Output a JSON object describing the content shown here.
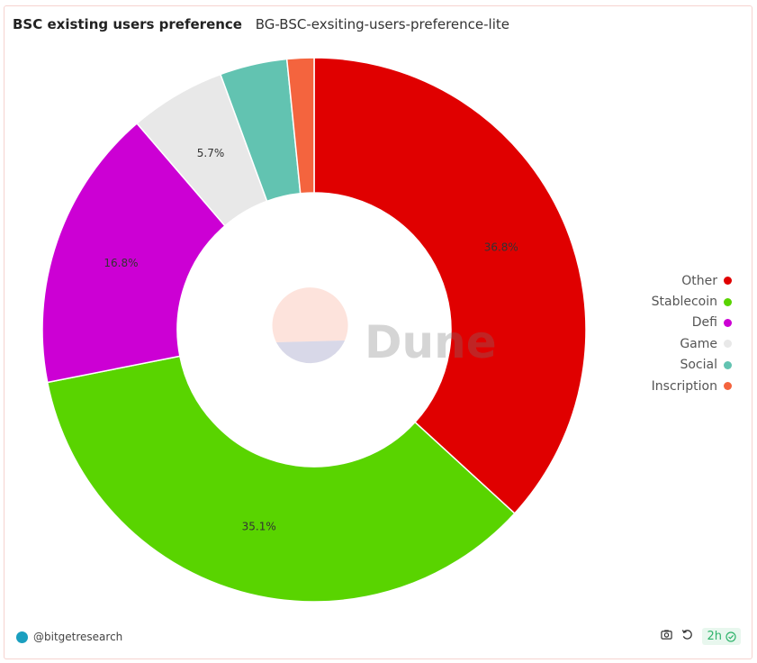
{
  "header": {
    "title": "BSC existing users preference",
    "subtitle": "BG-BSC-exsiting-users-preference-lite"
  },
  "chart_data": {
    "type": "pie",
    "donut": true,
    "categories": [
      "Other",
      "Stablecoin",
      "Defi",
      "Game",
      "Social",
      "Inscription"
    ],
    "values": [
      36.8,
      35.1,
      16.8,
      5.7,
      4.0,
      1.6
    ],
    "data_labels": [
      "36.8%",
      "35.1%",
      "16.8%",
      "5.7%",
      "",
      ""
    ],
    "colors": [
      "#e00000",
      "#59d400",
      "#cc00d4",
      "#e8e8e8",
      "#62c3b1",
      "#f4643e"
    ],
    "legend_position": "right",
    "watermark": "Dune"
  },
  "footer": {
    "author": "@bitgetresearch",
    "refresh_age": "2h",
    "icons": [
      "camera-icon",
      "refresh-icon",
      "check-circle-icon"
    ]
  }
}
